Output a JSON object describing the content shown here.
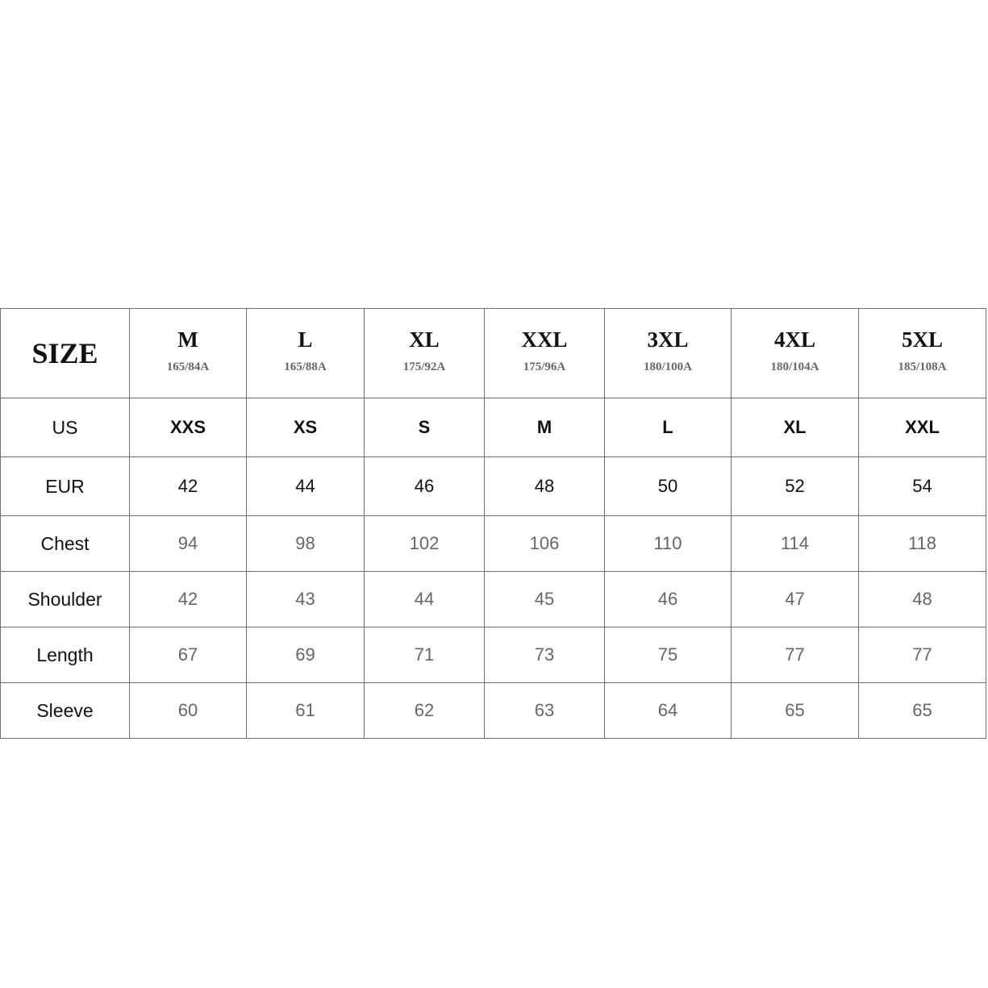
{
  "table": {
    "corner": "SIZE",
    "sizes": [
      {
        "size": "M",
        "code": "165/84A"
      },
      {
        "size": "L",
        "code": "165/88A"
      },
      {
        "size": "XL",
        "code": "175/92A"
      },
      {
        "size": "XXL",
        "code": "175/96A"
      },
      {
        "size": "3XL",
        "code": "180/100A"
      },
      {
        "size": "4XL",
        "code": "180/104A"
      },
      {
        "size": "5XL",
        "code": "185/108A"
      }
    ],
    "rows": [
      {
        "label": "US",
        "values": [
          "XXS",
          "XS",
          "S",
          "M",
          "L",
          "XL",
          "XXL"
        ]
      },
      {
        "label": "EUR",
        "values": [
          "42",
          "44",
          "46",
          "48",
          "50",
          "52",
          "54"
        ]
      },
      {
        "label": "Chest",
        "values": [
          "94",
          "98",
          "102",
          "106",
          "110",
          "114",
          "118"
        ]
      },
      {
        "label": "Shoulder",
        "values": [
          "42",
          "43",
          "44",
          "45",
          "46",
          "47",
          "48"
        ]
      },
      {
        "label": "Length",
        "values": [
          "67",
          "69",
          "71",
          "73",
          "75",
          "77",
          "77"
        ]
      },
      {
        "label": "Sleeve",
        "values": [
          "60",
          "61",
          "62",
          "63",
          "64",
          "65",
          "65"
        ]
      }
    ]
  }
}
